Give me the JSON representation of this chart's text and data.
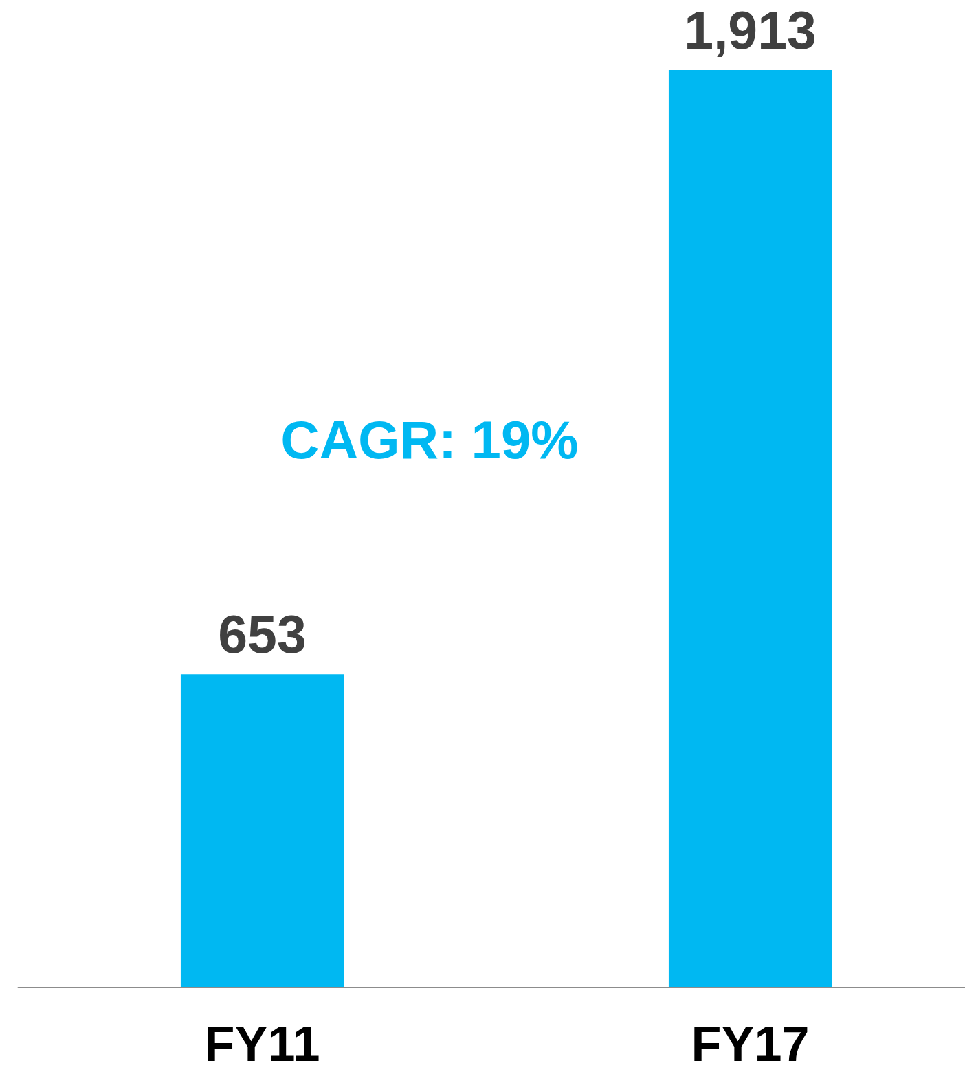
{
  "chart_data": {
    "type": "bar",
    "categories": [
      "FY11",
      "FY17"
    ],
    "values": [
      653,
      1913
    ],
    "color": "#00b8f2",
    "value_labels": [
      "653",
      "1,913"
    ],
    "annotations": [
      "CAGR: 19%"
    ]
  }
}
